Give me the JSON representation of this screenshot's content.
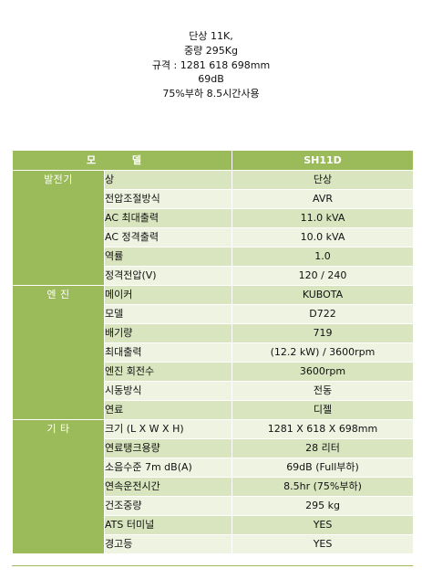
{
  "intro": {
    "line1": "단상 11K,",
    "line2": "중량 295Kg",
    "line3": "규격 : 1281 618 698mm",
    "line4": "69dB",
    "line5": "75%부하 8.5시간사용"
  },
  "table": {
    "header": {
      "col1": "모 델",
      "col2": "SH11D"
    },
    "groups": [
      {
        "label": "발전기",
        "rows": [
          {
            "item": "상",
            "value": "단상"
          },
          {
            "item": "전압조절방식",
            "value": "AVR"
          },
          {
            "item": "AC 최대출력",
            "value": "11.0 kVA"
          },
          {
            "item": "AC 정격출력",
            "value": "10.0 kVA"
          },
          {
            "item": "역률",
            "value": "1.0"
          },
          {
            "item": "정격전압(V)",
            "value": "120 / 240"
          }
        ]
      },
      {
        "label": "엔 진",
        "rows": [
          {
            "item": "메이커",
            "value": "KUBOTA"
          },
          {
            "item": "모델",
            "value": "D722"
          },
          {
            "item": "배기량",
            "value": "719"
          },
          {
            "item": "최대출력",
            "value": "(12.2 kW) / 3600rpm"
          },
          {
            "item": "엔진 회전수",
            "value": "3600rpm"
          },
          {
            "item": "시동방식",
            "value": "전동"
          },
          {
            "item": "연료",
            "value": "디젤"
          }
        ]
      },
      {
        "label": "기 타",
        "rows": [
          {
            "item": "크기 (L X W X H)",
            "value": "1281 X 618 X 698mm"
          },
          {
            "item": "연료탱크용량",
            "value": "28 리터"
          },
          {
            "item": "소음수준 7m dB(A)",
            "value": "69dB (Full부하)"
          },
          {
            "item": "연속운전시간",
            "value": "8.5hr (75%부하)"
          },
          {
            "item": "건조중량",
            "value": "295 kg"
          },
          {
            "item": "ATS 터미널",
            "value": "YES"
          },
          {
            "item": "경고등",
            "value": "YES"
          }
        ]
      }
    ]
  }
}
